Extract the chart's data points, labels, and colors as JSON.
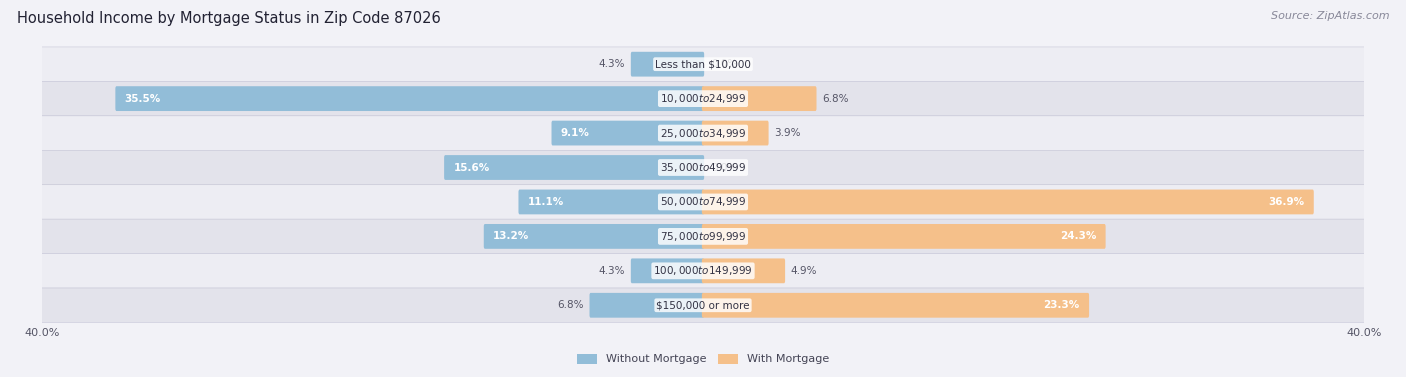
{
  "title": "Household Income by Mortgage Status in Zip Code 87026",
  "source": "Source: ZipAtlas.com",
  "categories": [
    "Less than $10,000",
    "$10,000 to $24,999",
    "$25,000 to $34,999",
    "$35,000 to $49,999",
    "$50,000 to $74,999",
    "$75,000 to $99,999",
    "$100,000 to $149,999",
    "$150,000 or more"
  ],
  "without_mortgage": [
    4.3,
    35.5,
    9.1,
    15.6,
    11.1,
    13.2,
    4.3,
    6.8
  ],
  "with_mortgage": [
    0.0,
    6.8,
    3.9,
    0.0,
    36.9,
    24.3,
    4.9,
    23.3
  ],
  "blue_color": "#92bdd8",
  "orange_color": "#f5c08a",
  "row_bg_light": "#ededf3",
  "row_bg_dark": "#e3e3eb",
  "axis_limit": 40.0,
  "legend_label_blue": "Without Mortgage",
  "legend_label_orange": "With Mortgage",
  "title_fontsize": 10.5,
  "source_fontsize": 8,
  "label_fontsize": 7.5,
  "category_fontsize": 7.5
}
